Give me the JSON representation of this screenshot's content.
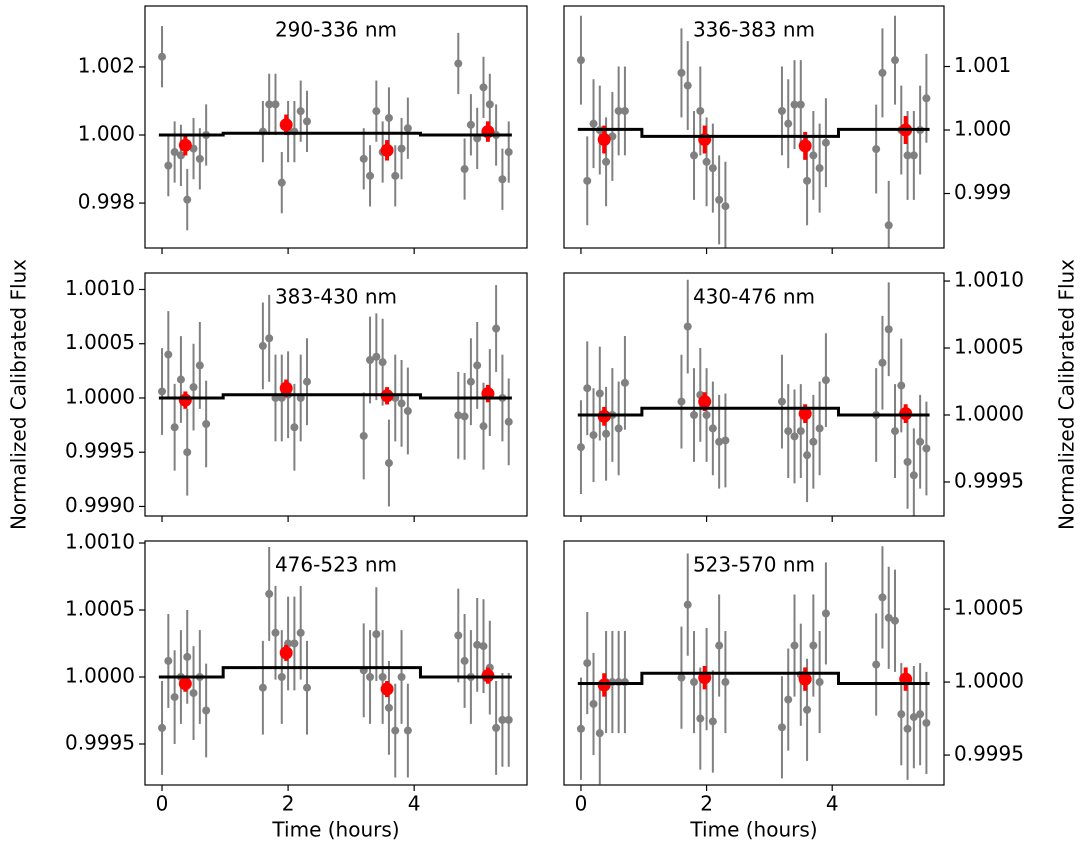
{
  "chart_data": [
    {
      "type": "scatter",
      "title": "290-336 nm",
      "xlim": [
        -0.27,
        5.79
      ],
      "xticks": [
        0,
        2,
        4
      ],
      "xticklabels": false,
      "ylim": [
        0.99668,
        1.00379
      ],
      "yticks": [
        1.002,
        {
          "value": 1,
          "label": "1.000"
        },
        0.998
      ],
      "yaxis_side": "left",
      "series": [
        {
          "color": "#808080",
          "x": [
            0,
            0.1,
            0.2,
            0.3,
            0.4,
            0.5,
            0.6,
            0.7,
            1.6,
            1.7,
            1.8,
            1.9,
            2,
            2.1,
            2.2,
            2.3,
            3.2,
            3.3,
            3.4,
            3.5,
            3.6,
            3.7,
            3.8,
            3.9,
            4.7,
            4.8,
            4.9,
            5,
            5.1,
            5.2,
            5.3,
            5.4,
            5.5
          ],
          "values": [
            1.0023,
            0.9991,
            0.9995,
            0.9994,
            0.9981,
            0.9996,
            0.9993,
            1.0,
            1.0001,
            1.0009,
            1.0009,
            0.9986,
            1.0001,
            1.0001,
            1.0007,
            1.0004,
            0.9993,
            0.9988,
            1.0007,
            0.9995,
            1.0005,
            0.9988,
            0.9996,
            1.0002,
            1.0021,
            0.999,
            1.0003,
            0.9999,
            1.0014,
            1.0009,
            1.0,
            0.9987,
            0.9995
          ],
          "errors": [
            0.0009,
            0.0009,
            0.0009,
            0.0009,
            0.0009,
            0.0009,
            0.0009,
            0.0009,
            0.0009,
            0.0009,
            0.0009,
            0.0009,
            0.0009,
            0.0009,
            0.0009,
            0.0009,
            0.0009,
            0.0009,
            0.0009,
            0.0009,
            0.0009,
            0.0009,
            0.0009,
            0.0009,
            0.0009,
            0.0009,
            0.0009,
            0.0009,
            0.0009,
            0.0009,
            0.0009,
            0.0009,
            0.0009
          ]
        },
        {
          "color": "#ff0000",
          "x": [
            0.37,
            1.97,
            3.57,
            5.17
          ],
          "values": [
            0.9997,
            1.0003,
            0.99955,
            1.0001
          ],
          "errors": [
            0.0003,
            0.0003,
            0.0003,
            0.0003
          ]
        },
        {
          "color": "#000000",
          "line": true,
          "x": [
            -0.05,
            0.97,
            0.97,
            4.1,
            4.1,
            5.55
          ],
          "values": [
            1.0,
            1.0,
            1.00005,
            1.00005,
            1.0,
            1.0
          ]
        }
      ]
    },
    {
      "type": "scatter",
      "title": "336-383 nm",
      "xlim": [
        -0.27,
        5.78
      ],
      "xticks": [
        0,
        2,
        4
      ],
      "xticklabels": false,
      "ylim": [
        0.998142,
        1.001953
      ],
      "yticks": [
        1.001,
        {
          "value": 1,
          "label": "1.000"
        },
        0.999
      ],
      "yaxis_side": "right",
      "series": [
        {
          "color": "#808080",
          "x": [
            0,
            0.1,
            0.2,
            0.3,
            0.4,
            0.5,
            0.6,
            0.7,
            1.6,
            1.7,
            1.8,
            1.9,
            2,
            2.1,
            2.2,
            2.3,
            3.2,
            3.3,
            3.4,
            3.5,
            3.6,
            3.7,
            3.8,
            3.9,
            4.7,
            4.8,
            4.9,
            5,
            5.1,
            5.2,
            5.3,
            5.4,
            5.5
          ],
          "values": [
            1.0011,
            0.9992,
            1.0001,
            1.0,
            0.9995,
            0.9999,
            1.0003,
            1.0003,
            1.0009,
            1.0007,
            0.9996,
            1.0003,
            0.9995,
            0.9994,
            0.9989,
            0.9988,
            1.0003,
            1.0001,
            1.0004,
            1.0004,
            0.9992,
            0.9996,
            0.9994,
            0.9998,
            0.9997,
            1.0009,
            0.9985,
            1.0011,
            1.0,
            0.9996,
            0.9996,
            1.0,
            1.0005
          ],
          "errors": [
            0.0007,
            0.0007,
            0.0007,
            0.0007,
            0.0007,
            0.0007,
            0.0007,
            0.0007,
            0.0007,
            0.0007,
            0.0007,
            0.0007,
            0.0007,
            0.0007,
            0.0007,
            0.0007,
            0.0007,
            0.0007,
            0.0007,
            0.0007,
            0.0007,
            0.0007,
            0.0007,
            0.0007,
            0.0007,
            0.0007,
            0.0007,
            0.0007,
            0.0007,
            0.0007,
            0.0007,
            0.0007,
            0.0007
          ]
        },
        {
          "color": "#ff0000",
          "x": [
            0.37,
            1.97,
            3.57,
            5.17
          ],
          "values": [
            0.99985,
            0.99985,
            0.99975,
            1.0
          ],
          "errors": [
            0.00022,
            0.00022,
            0.00022,
            0.00022
          ]
        },
        {
          "color": "#000000",
          "line": true,
          "x": [
            -0.05,
            0.97,
            0.97,
            4.1,
            4.1,
            5.55
          ],
          "values": [
            1.00001,
            1.00001,
            0.9999,
            0.9999,
            1.00001,
            1.00001
          ]
        }
      ]
    },
    {
      "type": "scatter",
      "title": "383-430 nm",
      "ylabel": "Normalized Calibrated Flux",
      "xlim": [
        -0.27,
        5.79
      ],
      "xticks": [
        0,
        2,
        4
      ],
      "xticklabels": false,
      "ylim": [
        0.998912,
        1.001152
      ],
      "yticks": [
        {
          "value": 1.001,
          "label": "1.0010"
        },
        1.0005,
        {
          "value": 1,
          "label": "1.0000"
        },
        0.9995,
        {
          "value": 0.999,
          "label": "0.9990"
        }
      ],
      "yaxis_side": "left",
      "series": [
        {
          "color": "#808080",
          "x": [
            0,
            0.1,
            0.2,
            0.3,
            0.4,
            0.5,
            0.6,
            0.7,
            1.6,
            1.7,
            1.8,
            1.9,
            2,
            2.1,
            2.2,
            2.3,
            3.2,
            3.3,
            3.4,
            3.5,
            3.6,
            3.7,
            3.8,
            3.9,
            4.7,
            4.8,
            4.9,
            5,
            5.1,
            5.2,
            5.3,
            5.4,
            5.5
          ],
          "values": [
            1.00006,
            1.0004,
            0.99973,
            1.00017,
            0.9995,
            1.0001,
            1.0003,
            0.99976,
            1.00048,
            1.00055,
            1.0,
            1.0,
            1.00003,
            0.99973,
            1.0,
            1.00015,
            0.99965,
            1.00035,
            1.00038,
            1.00033,
            0.9994,
            1.0,
            0.99995,
            0.99988,
            0.99984,
            0.99983,
            1.00015,
            1.0003,
            0.99974,
            1.00005,
            1.00064,
            1.0,
            0.99978
          ],
          "errors": [
            0.0004,
            0.0004,
            0.0004,
            0.0004,
            0.0004,
            0.0004,
            0.0004,
            0.0004,
            0.0004,
            0.0004,
            0.0004,
            0.0004,
            0.0004,
            0.0004,
            0.0004,
            0.0004,
            0.0004,
            0.0004,
            0.0004,
            0.0004,
            0.0004,
            0.0004,
            0.0004,
            0.0004,
            0.0004,
            0.0004,
            0.0004,
            0.0004,
            0.0004,
            0.0004,
            0.0004,
            0.0004,
            0.0004
          ]
        },
        {
          "color": "#ff0000",
          "x": [
            0.37,
            1.97,
            3.57,
            5.17
          ],
          "values": [
            0.99998,
            1.00009,
            1.00002,
            1.00004
          ],
          "errors": [
            8e-05,
            8e-05,
            8e-05,
            8e-05
          ]
        },
        {
          "color": "#000000",
          "line": true,
          "x": [
            -0.05,
            0.97,
            0.97,
            4.1,
            4.1,
            5.55
          ],
          "values": [
            1.0,
            1.0,
            1.00003,
            1.00003,
            1.0,
            1.0
          ]
        }
      ]
    },
    {
      "type": "scatter",
      "title": "430-476 nm",
      "ylabel": "Normalized Calibrated Flux",
      "xlim": [
        -0.27,
        5.78
      ],
      "xticks": [
        0,
        2,
        4
      ],
      "xticklabels": false,
      "ylim": [
        0.999246,
        1.00106
      ],
      "yticks": [
        {
          "value": 1.001,
          "label": "1.0010"
        },
        1.0005,
        {
          "value": 1,
          "label": "1.0000"
        },
        0.9995
      ],
      "yaxis_side": "right",
      "series": [
        {
          "color": "#808080",
          "x": [
            0,
            0.1,
            0.2,
            0.3,
            0.4,
            0.5,
            0.6,
            0.7,
            1.6,
            1.7,
            1.8,
            1.9,
            2,
            2.1,
            2.2,
            2.3,
            3.2,
            3.3,
            3.4,
            3.5,
            3.6,
            3.7,
            3.8,
            3.9,
            4.7,
            4.8,
            4.9,
            5,
            5.1,
            5.2,
            5.3,
            5.4,
            5.5
          ],
          "values": [
            0.99976,
            1.0002,
            0.99985,
            1.00016,
            0.99986,
            1.0,
            0.9999,
            1.00024,
            1.0001,
            1.00066,
            1.0,
            1.00015,
            1.0,
            0.9999,
            0.9998,
            0.99981,
            1.0001,
            0.99988,
            0.99984,
            0.99988,
            0.9997,
            0.9998,
            0.9999,
            1.00026,
            1.0,
            1.00039,
            1.00064,
            0.99988,
            1.00022,
            0.99965,
            0.99955,
            0.9998,
            0.99975
          ],
          "errors": [
            0.00035,
            0.00035,
            0.00035,
            0.00035,
            0.00035,
            0.00035,
            0.00035,
            0.00035,
            0.00035,
            0.00035,
            0.00035,
            0.00035,
            0.00035,
            0.00035,
            0.00035,
            0.00035,
            0.00035,
            0.00035,
            0.00035,
            0.00035,
            0.00035,
            0.00035,
            0.00035,
            0.00035,
            0.00035,
            0.00035,
            0.00035,
            0.00035,
            0.00035,
            0.00035,
            0.00035,
            0.00035,
            0.00035
          ]
        },
        {
          "color": "#ff0000",
          "x": [
            0.37,
            1.97,
            3.57,
            5.17
          ],
          "values": [
            0.99999,
            1.0001,
            1.00001,
            1.00001
          ],
          "errors": [
            7e-05,
            7e-05,
            7e-05,
            7e-05
          ]
        },
        {
          "color": "#000000",
          "line": true,
          "x": [
            -0.05,
            0.97,
            0.97,
            4.1,
            4.1,
            5.55
          ],
          "values": [
            1.0,
            1.0,
            1.00005,
            1.00005,
            1.0,
            1.0
          ]
        }
      ]
    },
    {
      "type": "scatter",
      "title": "476-523 nm",
      "xlabel": "Time (hours)",
      "xlim": [
        -0.27,
        5.79
      ],
      "xticks": [
        0,
        2,
        4
      ],
      "xticklabels": true,
      "ylim": [
        0.999194,
        1.001015
      ],
      "yticks": [
        {
          "value": 1.001,
          "label": "1.0010"
        },
        1.0005,
        {
          "value": 1,
          "label": "1.0000"
        },
        0.9995
      ],
      "yaxis_side": "left",
      "series": [
        {
          "color": "#808080",
          "x": [
            0,
            0.1,
            0.2,
            0.3,
            0.4,
            0.5,
            0.6,
            0.7,
            1.6,
            1.7,
            1.8,
            1.9,
            2,
            2.1,
            2.2,
            2.3,
            3.2,
            3.3,
            3.4,
            3.5,
            3.6,
            3.7,
            3.8,
            3.9,
            4.7,
            4.8,
            4.9,
            5,
            5.1,
            5.2,
            5.3,
            5.4,
            5.5
          ],
          "values": [
            0.99962,
            1.00012,
            0.99985,
            1.0,
            1.00015,
            0.99988,
            1.0,
            0.99975,
            0.99992,
            1.00062,
            1.00033,
            1.0,
            1.00025,
            1.00025,
            1.00033,
            0.99992,
            1.00005,
            1.0,
            1.00032,
            1.0,
            0.99977,
            0.9996,
            1.0,
            0.9996,
            1.00031,
            1.00012,
            1.0,
            1.00024,
            1.00023,
            1.00007,
            0.99962,
            0.99968,
            0.99968
          ],
          "errors": [
            0.00035,
            0.00035,
            0.00035,
            0.00035,
            0.00035,
            0.00035,
            0.00035,
            0.00035,
            0.00035,
            0.00035,
            0.00035,
            0.00035,
            0.00035,
            0.00035,
            0.00035,
            0.00035,
            0.00035,
            0.00035,
            0.00035,
            0.00035,
            0.00035,
            0.00035,
            0.00035,
            0.00035,
            0.00035,
            0.00035,
            0.00035,
            0.00035,
            0.00035,
            0.00035,
            0.00035,
            0.00035,
            0.00035
          ]
        },
        {
          "color": "#ff0000",
          "x": [
            0.37,
            1.97,
            3.57,
            5.17
          ],
          "values": [
            0.99995,
            1.00018,
            0.99991,
            1.00001
          ],
          "errors": [
            6e-05,
            6e-05,
            6e-05,
            6e-05
          ]
        },
        {
          "color": "#000000",
          "line": true,
          "x": [
            -0.05,
            0.97,
            0.97,
            4.1,
            4.1,
            5.55
          ],
          "values": [
            1.0,
            1.0,
            1.00007,
            1.00007,
            1.0,
            1.0
          ]
        }
      ]
    },
    {
      "type": "scatter",
      "title": "523-570 nm",
      "xlabel": "Time (hours)",
      "xlim": [
        -0.27,
        5.78
      ],
      "xticks": [
        0,
        2,
        4
      ],
      "xticklabels": true,
      "ylim": [
        0.999295,
        1.000966
      ],
      "yticks": [
        1.0005,
        {
          "value": 1,
          "label": "1.0000"
        },
        0.9995
      ],
      "yaxis_side": "right",
      "series": [
        {
          "color": "#808080",
          "x": [
            0,
            0.1,
            0.2,
            0.3,
            0.4,
            0.5,
            0.6,
            0.7,
            1.6,
            1.7,
            1.8,
            1.9,
            2,
            2.1,
            2.2,
            2.3,
            3.2,
            3.3,
            3.4,
            3.5,
            3.6,
            3.7,
            3.8,
            3.9,
            4.7,
            4.8,
            4.9,
            5,
            5.1,
            5.2,
            5.3,
            5.4,
            5.5
          ],
          "values": [
            0.99968,
            1.00013,
            0.99985,
            0.99965,
            1.0,
            1.0,
            1.0,
            1.0,
            1.00003,
            1.00053,
            1.0,
            0.99975,
            1.00002,
            0.99973,
            1.00025,
            1.0,
            0.99969,
            0.99988,
            1.00025,
            1.00005,
            0.99981,
            1.00025,
            1.0,
            1.00047,
            1.00012,
            1.00058,
            1.00044,
            1.00042,
            0.99978,
            0.99968,
            0.99976,
            0.99978,
            0.99972
          ],
          "errors": [
            0.00035,
            0.00035,
            0.00035,
            0.00035,
            0.00035,
            0.00035,
            0.00035,
            0.00035,
            0.00035,
            0.00035,
            0.00035,
            0.00035,
            0.00035,
            0.00035,
            0.00035,
            0.00035,
            0.00035,
            0.00035,
            0.00035,
            0.00035,
            0.00035,
            0.00035,
            0.00035,
            0.00035,
            0.00035,
            0.00035,
            0.00035,
            0.00035,
            0.00035,
            0.00035,
            0.00035,
            0.00035,
            0.00035
          ]
        },
        {
          "color": "#ff0000",
          "x": [
            0.37,
            1.97,
            3.57,
            5.17
          ],
          "values": [
            0.99998,
            1.00003,
            1.00002,
            1.00002
          ],
          "errors": [
            8e-05,
            8e-05,
            8e-05,
            8e-05
          ]
        },
        {
          "color": "#000000",
          "line": true,
          "x": [
            -0.05,
            0.97,
            0.97,
            4.1,
            4.1,
            5.55
          ],
          "values": [
            0.99999,
            0.99999,
            1.00006,
            1.00006,
            0.99999,
            0.99999
          ]
        }
      ]
    }
  ]
}
